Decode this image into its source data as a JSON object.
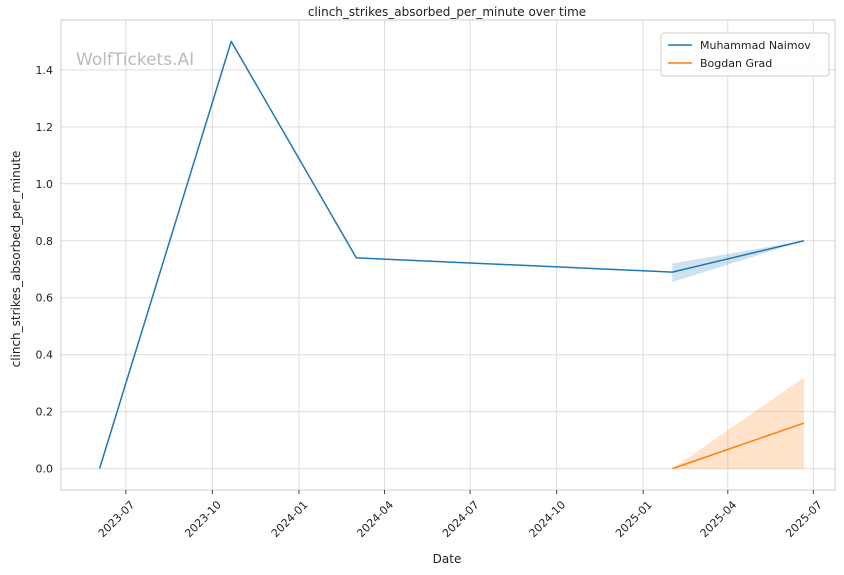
{
  "chart_data": {
    "type": "line",
    "title": "clinch_strikes_absorbed_per_minute over time",
    "xlabel": "Date",
    "ylabel": "clinch_strikes_absorbed_per_minute",
    "watermark": "WolfTickets.AI",
    "x_ticks": [
      "2023-07",
      "2023-10",
      "2024-01",
      "2024-04",
      "2024-07",
      "2024-10",
      "2025-01",
      "2025-04",
      "2025-07"
    ],
    "y_ticks": [
      "0.0",
      "0.2",
      "0.4",
      "0.6",
      "0.8",
      "1.0",
      "1.2",
      "1.4"
    ],
    "xlim": [
      "2023-04-23",
      "2025-07-24"
    ],
    "ylim": [
      -0.075,
      1.575
    ],
    "grid": true,
    "legend_position": "top-right",
    "series": [
      {
        "name": "Muhammad Naimov",
        "color": "#1f77b4",
        "points": [
          {
            "x": "2023-06-03",
            "y": 0.0
          },
          {
            "x": "2023-10-21",
            "y": 1.5
          },
          {
            "x": "2024-03-02",
            "y": 0.74
          },
          {
            "x": "2025-02-01",
            "y": 0.69
          },
          {
            "x": "2025-06-21",
            "y": 0.8
          }
        ],
        "band": [
          {
            "x": "2025-02-01",
            "lower": 0.655,
            "upper": 0.72
          },
          {
            "x": "2025-06-21",
            "lower": 0.8,
            "upper": 0.8
          }
        ]
      },
      {
        "name": "Bogdan Grad",
        "color": "#ff7f0e",
        "points": [
          {
            "x": "2025-02-01",
            "y": 0.0
          },
          {
            "x": "2025-06-21",
            "y": 0.16
          }
        ],
        "band": [
          {
            "x": "2025-02-01",
            "lower": 0.0,
            "upper": 0.0
          },
          {
            "x": "2025-06-21",
            "lower": 0.0,
            "upper": 0.32
          }
        ]
      }
    ]
  }
}
